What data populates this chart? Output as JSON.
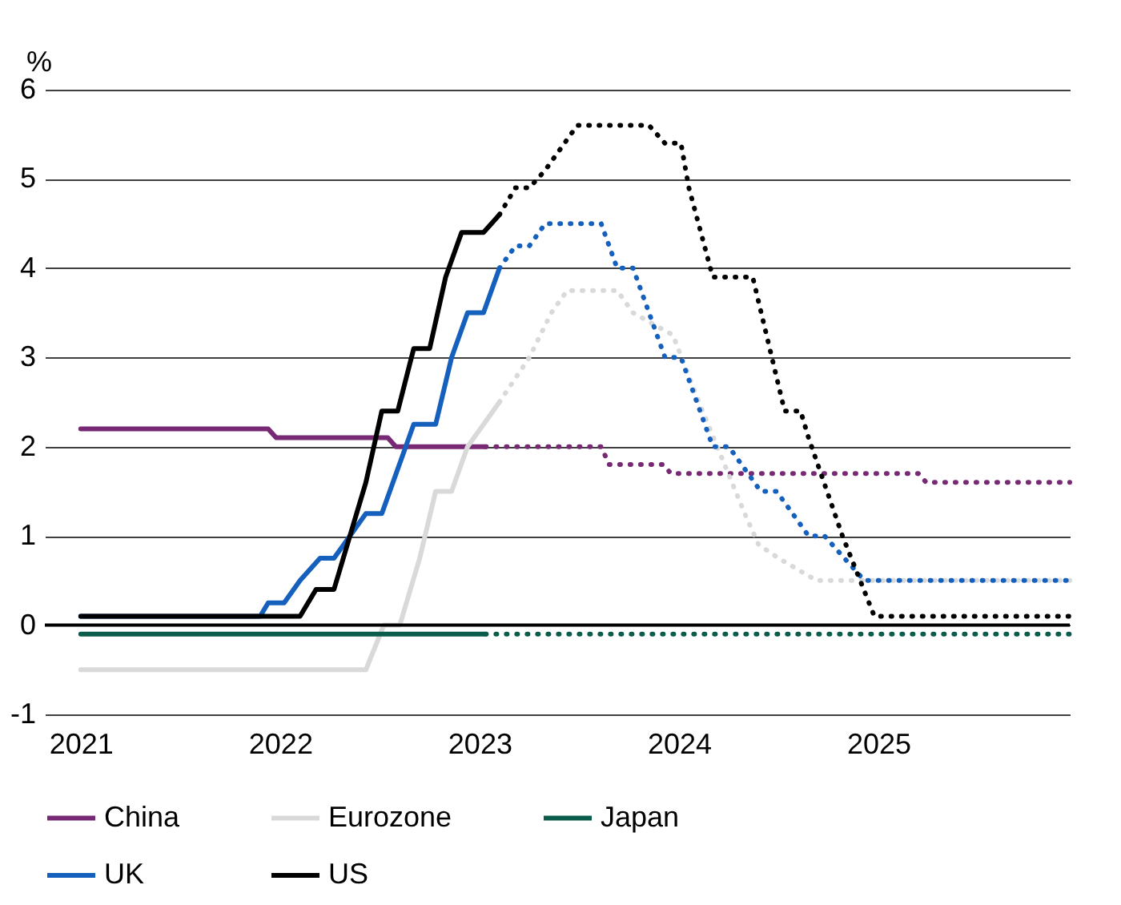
{
  "chart_data": {
    "type": "line",
    "ylabel": "%",
    "xlim": [
      2020.82,
      2025.96
    ],
    "xticks": [
      2021,
      2022,
      2023,
      2024,
      2025
    ],
    "ylim": [
      -1,
      6
    ],
    "yticks": [
      -1,
      0,
      1,
      2,
      3,
      4,
      5,
      6
    ],
    "grid": "y",
    "legend": "bottom",
    "ref_lines": [
      {
        "axis": "y",
        "value": 0,
        "color": "#000000"
      }
    ],
    "series": [
      {
        "name": "China",
        "color": "#772a73",
        "line_style": "solid",
        "x": [
          2021,
          2021.94,
          2021.98,
          2022.54,
          2022.58,
          2023.03
        ],
        "values": [
          2.2,
          2.2,
          2.1,
          2.1,
          2.0,
          2.0
        ]
      },
      {
        "name": "Eurozone",
        "color": "#d9d9d9",
        "line_style": "solid",
        "x": [
          2021,
          2022.43,
          2022.52,
          2022.6,
          2022.7,
          2022.78,
          2022.86,
          2022.94,
          2023.1
        ],
        "values": [
          -0.5,
          -0.5,
          0,
          0,
          0.75,
          1.5,
          1.5,
          2.0,
          2.5
        ]
      },
      {
        "name": "Japan",
        "color": "#0b5c4b",
        "line_style": "solid",
        "x": [
          2021,
          2023.03
        ],
        "values": [
          -0.1,
          -0.1
        ]
      },
      {
        "name": "UK",
        "color": "#1560bd",
        "line_style": "solid",
        "x": [
          2021,
          2021.9,
          2021.94,
          2022.02,
          2022.1,
          2022.2,
          2022.27,
          2022.35,
          2022.43,
          2022.51,
          2022.59,
          2022.67,
          2022.78,
          2022.86,
          2022.94,
          2023.02,
          2023.1
        ],
        "values": [
          0.1,
          0.1,
          0.25,
          0.25,
          0.5,
          0.75,
          0.75,
          1.0,
          1.25,
          1.25,
          1.75,
          2.25,
          2.25,
          3.0,
          3.5,
          3.5,
          4.0
        ]
      },
      {
        "name": "US",
        "color": "#000000",
        "line_style": "solid",
        "x": [
          2021,
          2022.1,
          2022.18,
          2022.27,
          2022.35,
          2022.43,
          2022.51,
          2022.59,
          2022.67,
          2022.75,
          2022.83,
          2022.91,
          2023.02,
          2023.1
        ],
        "values": [
          0.1,
          0.1,
          0.4,
          0.4,
          1.0,
          1.6,
          2.4,
          2.4,
          3.1,
          3.1,
          3.9,
          4.4,
          4.4,
          4.6
        ]
      },
      {
        "color": "#772a73",
        "line_style": "dotted",
        "x": [
          2023.03,
          2023.61,
          2023.65,
          2023.92,
          2023.96,
          2025.2,
          2025.24,
          2025.96
        ],
        "values": [
          2.0,
          2.0,
          1.8,
          1.8,
          1.7,
          1.7,
          1.6,
          1.6
        ]
      },
      {
        "color": "#d9d9d9",
        "line_style": "dotted",
        "x": [
          2023.1,
          2023.25,
          2023.36,
          2023.44,
          2023.69,
          2023.77,
          2023.97,
          2024.1,
          2024.33,
          2024.4,
          2024.5,
          2024.69,
          2025.96
        ],
        "values": [
          2.5,
          3.0,
          3.5,
          3.75,
          3.75,
          3.5,
          3.25,
          2.5,
          1.25,
          0.9,
          0.75,
          0.5,
          0.5
        ]
      },
      {
        "color": "#0b5c4b",
        "line_style": "dotted",
        "x": [
          2023.03,
          2025.96
        ],
        "values": [
          -0.1,
          -0.1
        ]
      },
      {
        "color": "#1560bd",
        "line_style": "dotted",
        "x": [
          2023.1,
          2023.18,
          2023.25,
          2023.33,
          2023.61,
          2023.69,
          2023.77,
          2023.93,
          2024.01,
          2024.17,
          2024.25,
          2024.41,
          2024.49,
          2024.65,
          2024.73,
          2024.93,
          2025.96
        ],
        "values": [
          4.0,
          4.25,
          4.25,
          4.5,
          4.5,
          4.0,
          4.0,
          3.0,
          3.0,
          2.0,
          2.0,
          1.5,
          1.5,
          1.0,
          1.0,
          0.5,
          0.5
        ]
      },
      {
        "color": "#000000",
        "line_style": "dotted",
        "x": [
          2023.1,
          2023.18,
          2023.25,
          2023.33,
          2023.49,
          2023.85,
          2023.93,
          2024.01,
          2024.05,
          2024.17,
          2024.37,
          2024.53,
          2024.61,
          2024.65,
          2024.82,
          2024.98,
          2025.96
        ],
        "values": [
          4.6,
          4.9,
          4.9,
          5.1,
          5.6,
          5.6,
          5.4,
          5.4,
          4.9,
          3.9,
          3.9,
          2.4,
          2.4,
          2.1,
          1.0,
          0.1,
          0.1
        ]
      }
    ]
  }
}
